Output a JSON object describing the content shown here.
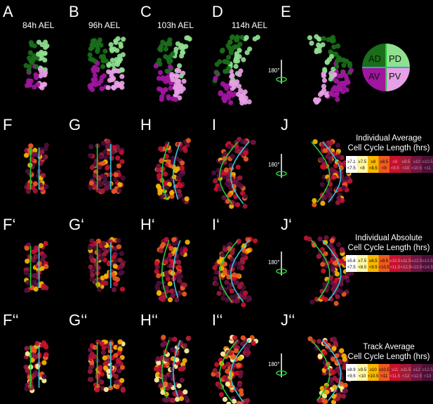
{
  "panels": {
    "row1": [
      "A",
      "B",
      "C",
      "D",
      "E"
    ],
    "row2": [
      "F",
      "G",
      "H",
      "I",
      "J"
    ],
    "row3": [
      "F‘",
      "G‘",
      "H‘",
      "I‘",
      "J‘"
    ],
    "row4": [
      "F‘‘",
      "G‘‘",
      "H‘‘",
      "I‘‘",
      "J‘‘"
    ]
  },
  "stages": [
    "84h AEL",
    "96h AEL",
    "103h AEL",
    "114h AEL"
  ],
  "rotation_label": "180°",
  "quadrants": {
    "AD": {
      "label": "AD",
      "color": "#1a6e1a"
    },
    "PD": {
      "label": "PD",
      "color": "#90e090"
    },
    "AV": {
      "label": "AV",
      "color": "#a0169e"
    },
    "PV": {
      "label": "PV",
      "color": "#e7a0e6"
    }
  },
  "legends": [
    {
      "title_line1": "Individual Average",
      "title_line2": "Cell Cycle Length (hrs)",
      "cells": [
        {
          "top": "≥7.1",
          "bottom": "<7.5",
          "color": "#ffffff",
          "text_color": "#000000"
        },
        {
          "top": "≥7.5",
          "bottom": "<8",
          "color": "#fff7a0",
          "text_color": "#000000"
        },
        {
          "top": "≥8",
          "bottom": "<8.5",
          "color": "#f5b800",
          "text_color": "#000000"
        },
        {
          "top": "≥8.5",
          "bottom": "<9",
          "color": "#ee5a1e",
          "text_color": "#000000"
        },
        {
          "top": "≥9",
          "bottom": "<9.5",
          "color": "#c8102e",
          "text_color": "#e8a0a0"
        },
        {
          "top": "≥9.5",
          "bottom": "<10",
          "color": "#9b1b3a",
          "text_color": "#e8a0a0"
        },
        {
          "top": "≥10",
          "bottom": "<10.5",
          "color": "#6e1540",
          "text_color": "#d090b0"
        },
        {
          "top": "≥10.5",
          "bottom": "<11",
          "color": "#4a1038",
          "text_color": "#c080a0"
        }
      ]
    },
    {
      "title_line1": "Individual Absolute",
      "title_line2": "Cell Cycle Length (hrs)",
      "cells": [
        {
          "top": "≥5.6",
          "bottom": "<7.5",
          "color": "#ffffff",
          "text_color": "#000000"
        },
        {
          "top": "≥7.5",
          "bottom": "<8.5",
          "color": "#fff7a0",
          "text_color": "#000000"
        },
        {
          "top": "≥8.5",
          "bottom": "<9.5",
          "color": "#f5b800",
          "text_color": "#000000"
        },
        {
          "top": "≥9.5",
          "bottom": "<10.5",
          "color": "#ee5a1e",
          "text_color": "#000000"
        },
        {
          "top": "≥10.5",
          "bottom": "<11.5",
          "color": "#c8102e",
          "text_color": "#e8a0a0"
        },
        {
          "top": "≥11.5",
          "bottom": "<12.5",
          "color": "#9b1b3a",
          "text_color": "#e8a0a0"
        },
        {
          "top": "≥12.5",
          "bottom": "<13.5",
          "color": "#6e1540",
          "text_color": "#d090b0"
        },
        {
          "top": "≥13.5",
          "bottom": "<14.5",
          "color": "#4a1038",
          "text_color": "#c080a0"
        }
      ]
    },
    {
      "title_line1": "Track Average",
      "title_line2": "Cell Cycle Length (hrs)",
      "cells": [
        {
          "top": "≥8.9",
          "bottom": "<9.5",
          "color": "#ffffff",
          "text_color": "#000000"
        },
        {
          "top": "≥9.5",
          "bottom": "<10",
          "color": "#fff7a0",
          "text_color": "#000000"
        },
        {
          "top": "≥10",
          "bottom": "<10.5",
          "color": "#f5b800",
          "text_color": "#000000"
        },
        {
          "top": "≥10.5",
          "bottom": "<11",
          "color": "#ee5a1e",
          "text_color": "#000000"
        },
        {
          "top": "≥11",
          "bottom": "<11.5",
          "color": "#c8102e",
          "text_color": "#e8a0a0"
        },
        {
          "top": "≥11.5",
          "bottom": "<12",
          "color": "#9b1b3a",
          "text_color": "#e8a0a0"
        },
        {
          "top": "≥12",
          "bottom": "<12.5",
          "color": "#6e1540",
          "text_color": "#d090b0"
        },
        {
          "top": "≥12.5",
          "bottom": "<13",
          "color": "#4a1038",
          "text_color": "#c080a0"
        }
      ]
    }
  ],
  "colors": {
    "background": "#000000",
    "outline_green": "#22cc33",
    "outline_cyan": "#33c8dd",
    "arrow_green": "#22cc33"
  }
}
